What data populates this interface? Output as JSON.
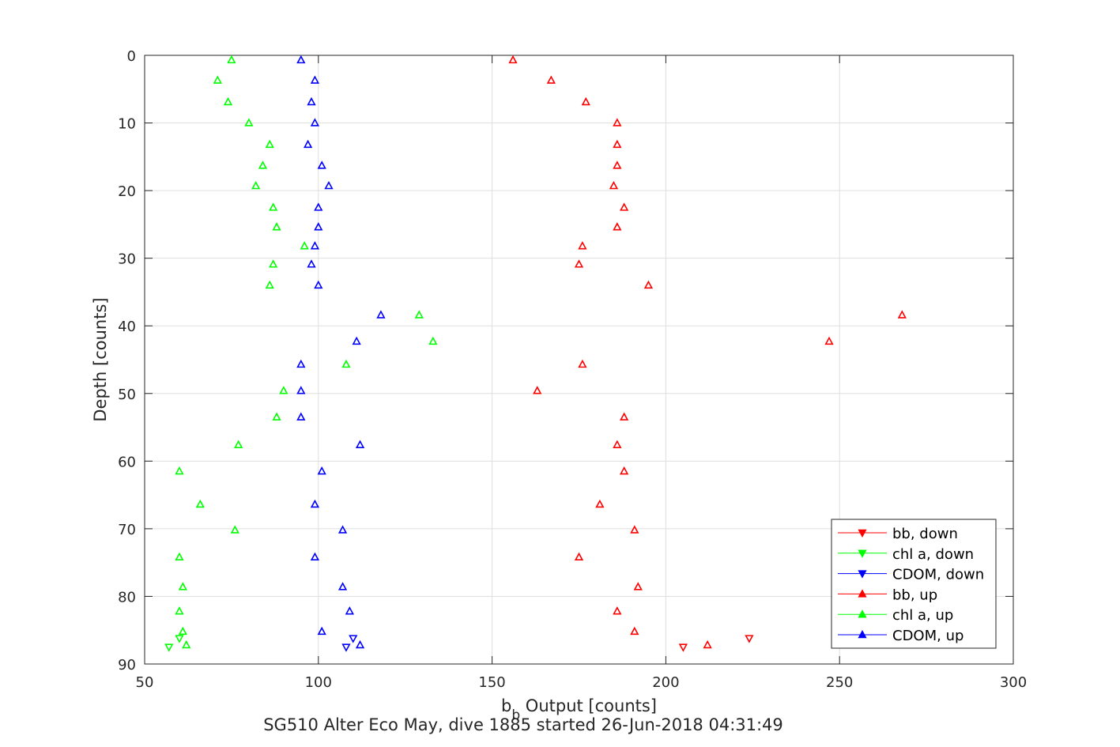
{
  "chart_data": {
    "type": "scatter",
    "title": "",
    "caption": "SG510 Alter Eco May, dive 1885 started 26-Jun-2018 04:31:49",
    "xlabel_main": "b",
    "xlabel_sub": "b",
    "xlabel_rest": " Output [counts]",
    "ylabel": "Depth [counts]",
    "xlim": [
      50,
      300
    ],
    "ylim": [
      0,
      90
    ],
    "y_reversed": true,
    "grid": true,
    "legend_position": "bottom-right",
    "xticks": [
      "50",
      "100",
      "150",
      "200",
      "250",
      "300"
    ],
    "yticks": [
      "0",
      "10",
      "20",
      "30",
      "40",
      "50",
      "60",
      "70",
      "80",
      "90"
    ],
    "series": [
      {
        "name": "bb, down",
        "color": "#ff0000",
        "marker": "triangle-down",
        "points": [
          [
            224,
            86.2
          ],
          [
            205,
            87.5
          ]
        ]
      },
      {
        "name": "chl a, down",
        "color": "#00ff00",
        "marker": "triangle-down",
        "points": [
          [
            60,
            86.2
          ],
          [
            57,
            87.5
          ]
        ]
      },
      {
        "name": "CDOM, down",
        "color": "#0000ff",
        "marker": "triangle-down",
        "points": [
          [
            110,
            86.2
          ],
          [
            108,
            87.5
          ]
        ]
      },
      {
        "name": "bb, up",
        "color": "#ff0000",
        "marker": "triangle-up",
        "points": [
          [
            156,
            0.7
          ],
          [
            167,
            3.7
          ],
          [
            177,
            6.9
          ],
          [
            186,
            10.0
          ],
          [
            186,
            13.2
          ],
          [
            186,
            16.3
          ],
          [
            185,
            19.3
          ],
          [
            188,
            22.5
          ],
          [
            186,
            25.4
          ],
          [
            176,
            28.2
          ],
          [
            175,
            30.9
          ],
          [
            195,
            34.0
          ],
          [
            268,
            38.4
          ],
          [
            247,
            42.3
          ],
          [
            176,
            45.7
          ],
          [
            163,
            49.6
          ],
          [
            188,
            53.5
          ],
          [
            186,
            57.6
          ],
          [
            188,
            61.5
          ],
          [
            181,
            66.4
          ],
          [
            191,
            70.2
          ],
          [
            175,
            74.2
          ],
          [
            192,
            78.6
          ],
          [
            186,
            82.2
          ],
          [
            191,
            85.2
          ],
          [
            212,
            87.2
          ]
        ]
      },
      {
        "name": "chl a, up",
        "color": "#00ff00",
        "marker": "triangle-up",
        "points": [
          [
            75,
            0.7
          ],
          [
            71,
            3.7
          ],
          [
            74,
            6.9
          ],
          [
            80,
            10.0
          ],
          [
            86,
            13.2
          ],
          [
            84,
            16.3
          ],
          [
            82,
            19.3
          ],
          [
            87,
            22.5
          ],
          [
            88,
            25.4
          ],
          [
            96,
            28.2
          ],
          [
            87,
            30.9
          ],
          [
            86,
            34.0
          ],
          [
            129,
            38.4
          ],
          [
            133,
            42.3
          ],
          [
            108,
            45.7
          ],
          [
            90,
            49.6
          ],
          [
            88,
            53.5
          ],
          [
            77,
            57.6
          ],
          [
            60,
            61.5
          ],
          [
            66,
            66.4
          ],
          [
            76,
            70.2
          ],
          [
            60,
            74.2
          ],
          [
            61,
            78.6
          ],
          [
            60,
            82.2
          ],
          [
            61,
            85.2
          ],
          [
            62,
            87.2
          ]
        ]
      },
      {
        "name": "CDOM, up",
        "color": "#0000ff",
        "marker": "triangle-up",
        "points": [
          [
            95,
            0.7
          ],
          [
            99,
            3.7
          ],
          [
            98,
            6.9
          ],
          [
            99,
            10.0
          ],
          [
            97,
            13.2
          ],
          [
            101,
            16.3
          ],
          [
            103,
            19.3
          ],
          [
            100,
            22.5
          ],
          [
            100,
            25.4
          ],
          [
            99,
            28.2
          ],
          [
            98,
            30.9
          ],
          [
            100,
            34.0
          ],
          [
            118,
            38.4
          ],
          [
            111,
            42.3
          ],
          [
            95,
            45.7
          ],
          [
            95,
            49.6
          ],
          [
            95,
            53.5
          ],
          [
            112,
            57.6
          ],
          [
            101,
            61.5
          ],
          [
            99,
            66.4
          ],
          [
            107,
            70.2
          ],
          [
            99,
            74.2
          ],
          [
            107,
            78.6
          ],
          [
            109,
            82.2
          ],
          [
            101,
            85.2
          ],
          [
            112,
            87.2
          ]
        ]
      }
    ]
  }
}
